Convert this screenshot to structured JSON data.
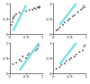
{
  "chart_data": [
    {
      "type": "scatter",
      "title": "a",
      "xlim": [
        0,
        1
      ],
      "ylim": [
        0,
        1
      ],
      "xticks": [
        0,
        0.5,
        1
      ],
      "yticks": [
        0,
        0.5,
        1
      ],
      "series": [
        {
          "type": "scatter",
          "color": "#555555",
          "marker": "circle",
          "x": [
            0.05,
            0.08,
            0.1,
            0.12,
            0.15,
            0.2,
            0.3,
            0.5,
            0.6,
            0.7,
            0.75,
            0.8,
            0.85,
            0.9
          ],
          "values": [
            0.3,
            0.4,
            0.5,
            0.55,
            0.6,
            0.65,
            0.7,
            0.75,
            0.78,
            0.8,
            0.85,
            0.82,
            0.88,
            0.86
          ]
        },
        {
          "type": "line",
          "color": "#7fe3e8",
          "line_style": "solid",
          "x": [
            0.1,
            0.5
          ],
          "values": [
            0.1,
            0.95
          ]
        }
      ]
    },
    {
      "type": "scatter",
      "title": "b",
      "xlim": [
        0,
        1
      ],
      "ylim": [
        0,
        1
      ],
      "xticks": [
        0,
        0.5,
        1
      ],
      "yticks": [
        0,
        0.5,
        1
      ],
      "series": [
        {
          "type": "scatter",
          "color": "#555555",
          "marker": "circle",
          "x": [
            0.1,
            0.15,
            0.2,
            0.3,
            0.35,
            0.45,
            0.5,
            0.6,
            0.65,
            0.75,
            0.85,
            0.9
          ],
          "values": [
            0.12,
            0.15,
            0.22,
            0.3,
            0.38,
            0.45,
            0.5,
            0.58,
            0.62,
            0.72,
            0.8,
            0.85
          ]
        },
        {
          "type": "line",
          "color": "#7fe3e8",
          "line_style": "solid",
          "x": [
            0.2,
            0.7
          ],
          "values": [
            0.3,
            1
          ]
        }
      ]
    },
    {
      "type": "scatter",
      "title": "c",
      "xlim": [
        0,
        1
      ],
      "ylim": [
        0,
        1
      ],
      "xticks": [
        0,
        0.5,
        1
      ],
      "yticks": [
        0,
        0.5,
        1
      ],
      "series": [
        {
          "type": "scatter",
          "color": "#555555",
          "marker": "circle",
          "x": [
            0.1,
            0.2,
            0.3,
            0.35,
            0.4,
            0.5,
            0.55,
            0.6,
            0.7,
            0.8,
            0.85
          ],
          "values": [
            0.3,
            0.35,
            0.45,
            0.4,
            0.55,
            0.5,
            0.6,
            0.65,
            0.7,
            0.75,
            0.8
          ]
        },
        {
          "type": "line",
          "color": "#7fe3e8",
          "line_style": "solid",
          "x": [
            0.3,
            0.9
          ],
          "values": [
            0.1,
            1
          ]
        }
      ]
    },
    {
      "type": "scatter",
      "title": "d",
      "xlim": [
        0,
        1
      ],
      "ylim": [
        0,
        1
      ],
      "xticks": [
        0,
        0.5,
        1
      ],
      "yticks": [
        0,
        0.5,
        1
      ],
      "series": [
        {
          "type": "scatter",
          "color": "#555555",
          "marker": "circle",
          "x": [
            0.1,
            0.2,
            0.25,
            0.35,
            0.4,
            0.5,
            0.55,
            0.65,
            0.7,
            0.8,
            0.9
          ],
          "values": [
            0.15,
            0.2,
            0.28,
            0.32,
            0.4,
            0.45,
            0.5,
            0.55,
            0.62,
            0.7,
            0.75
          ]
        },
        {
          "type": "line",
          "color": "#7fe3e8",
          "line_style": "solid",
          "x": [
            0.2,
            0.7
          ],
          "values": [
            0.3,
            1
          ]
        }
      ]
    }
  ]
}
